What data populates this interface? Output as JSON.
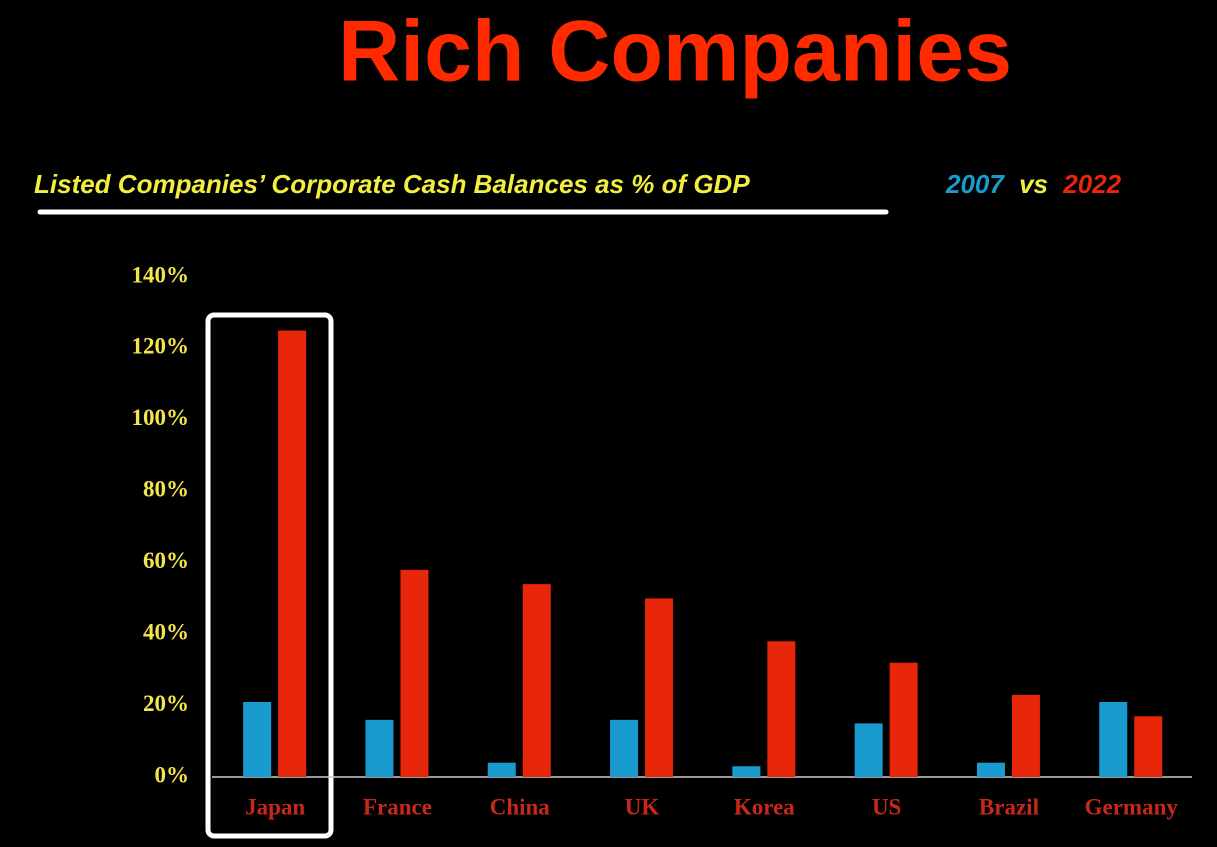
{
  "chart_data": {
    "type": "bar",
    "title": "Rich Companies",
    "subtitle": "Listed Companies’ Corporate Cash Balances as % of GDP",
    "legend_separator": "vs",
    "categories": [
      "Japan",
      "France",
      "China",
      "UK",
      "Korea",
      "US",
      "Brazil",
      "Germany"
    ],
    "series": [
      {
        "name": "2007",
        "color": "#1a9bd0",
        "values": [
          21,
          16,
          4,
          16,
          3,
          15,
          4,
          21
        ]
      },
      {
        "name": "2022",
        "color": "#e8260a",
        "values": [
          125,
          58,
          54,
          50,
          38,
          32,
          23,
          17
        ]
      }
    ],
    "ylim": [
      0,
      140
    ],
    "yticks": [
      {
        "value": 0,
        "label": "0%"
      },
      {
        "value": 20,
        "label": "20%"
      },
      {
        "value": 40,
        "label": "40%"
      },
      {
        "value": 60,
        "label": "60%"
      },
      {
        "value": 80,
        "label": "80%"
      },
      {
        "value": 100,
        "label": "100%"
      },
      {
        "value": 120,
        "label": "120%"
      },
      {
        "value": 140,
        "label": "140%"
      }
    ],
    "grid": false
  }
}
